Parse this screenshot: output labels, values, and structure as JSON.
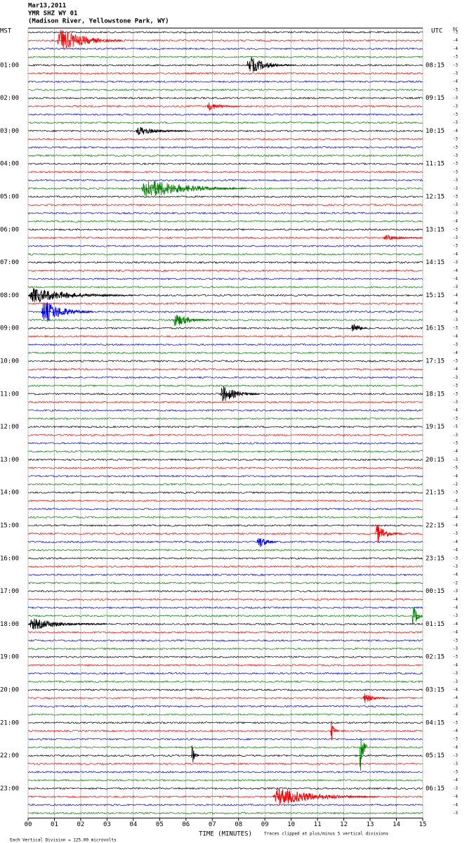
{
  "chart_data": {
    "type": "helicorder",
    "header": {
      "date": "Mar13,2011",
      "station": "YMR SHZ WY 01",
      "location": "(Madison River, Yellowstone Park, WY)"
    },
    "left_axis_title": "MST",
    "right_axis_title": "UTC",
    "dc_label": "DC",
    "mst_labels": [
      "01:00",
      "02:00",
      "03:00",
      "04:00",
      "05:00",
      "06:00",
      "07:00",
      "08:00",
      "09:00",
      "10:00",
      "11:00",
      "12:00",
      "13:00",
      "14:00",
      "15:00",
      "16:00",
      "17:00",
      "18:00",
      "19:00",
      "20:00",
      "21:00",
      "22:00",
      "23:00"
    ],
    "utc_labels": [
      "08:15",
      "09:15",
      "10:15",
      "11:15",
      "12:15",
      "13:15",
      "14:15",
      "15:15",
      "16:15",
      "17:15",
      "18:15",
      "19:15",
      "20:15",
      "21:15",
      "22:15",
      "23:15",
      "00:15",
      "01:15",
      "02:15",
      "03:15",
      "04:15",
      "05:15",
      "06:15"
    ],
    "trace_colors": [
      "#000000",
      "#ff0000",
      "#0000ff",
      "#008000"
    ],
    "dc_offsets": [
      -3,
      -4,
      -4,
      -3,
      -3,
      -3,
      -4,
      -3,
      -3,
      -3,
      -3,
      -3,
      -4,
      -3,
      -3,
      -3,
      -3,
      -3,
      -3,
      -3,
      -3,
      -3,
      -3,
      -4,
      -3,
      -3,
      -3,
      -4,
      -3,
      -4,
      -4,
      -3,
      -4,
      -4,
      -4,
      -3,
      -3,
      -4,
      -3,
      -4,
      -3,
      -4,
      -3,
      -3,
      -3,
      -3,
      -4,
      -3,
      -5,
      -3,
      -3,
      -4,
      -3,
      -5,
      -4,
      -2,
      -3,
      -4,
      -3,
      -4,
      -4,
      -3,
      -4,
      -4,
      -3,
      -3,
      -4,
      -2,
      -3,
      -4,
      -4,
      -3,
      -4,
      -4,
      -3,
      -3,
      -3,
      -4,
      -3,
      -3,
      -4,
      -4,
      -3,
      -4,
      -3,
      -4,
      -3,
      -4,
      -3,
      -3,
      -3,
      -4,
      -3,
      -4,
      -4,
      -3
    ],
    "xlim": [
      0,
      15
    ],
    "xticks": [
      {
        "value": 0,
        "label": "00"
      },
      {
        "value": 1,
        "label": "01"
      },
      {
        "value": 2,
        "label": "02"
      },
      {
        "value": 3,
        "label": "03"
      },
      {
        "value": 4,
        "label": "04"
      },
      {
        "value": 5,
        "label": "05"
      },
      {
        "value": 6,
        "label": "06"
      },
      {
        "value": 7,
        "label": "07"
      },
      {
        "value": 8,
        "label": "08"
      },
      {
        "value": 9,
        "label": "09"
      },
      10,
      11,
      12,
      13,
      14,
      15
    ],
    "x_axis_title": "TIME (MINUTES)",
    "events": [
      {
        "trace": 1,
        "minute": 1.1,
        "duration": 2.5,
        "amplitude": 8
      },
      {
        "trace": 4,
        "minute": 8.3,
        "duration": 1.8,
        "amplitude": 6
      },
      {
        "trace": 9,
        "minute": 6.8,
        "duration": 1.2,
        "amplitude": 3
      },
      {
        "trace": 12,
        "minute": 4.1,
        "duration": 2,
        "amplitude": 3
      },
      {
        "trace": 19,
        "minute": 4.3,
        "duration": 4,
        "amplitude": 7
      },
      {
        "trace": 25,
        "minute": 13.5,
        "duration": 1.5,
        "amplitude": 2
      },
      {
        "trace": 32,
        "minute": 0,
        "duration": 4,
        "amplitude": 5
      },
      {
        "trace": 34,
        "minute": 0.5,
        "duration": 2,
        "amplitude": 8
      },
      {
        "trace": 35,
        "minute": 5.5,
        "duration": 1.5,
        "amplitude": 5
      },
      {
        "trace": 36,
        "minute": 12.3,
        "duration": 0.6,
        "amplitude": 5
      },
      {
        "trace": 44,
        "minute": 7.3,
        "duration": 1.5,
        "amplitude": 6
      },
      {
        "trace": 61,
        "minute": 13.2,
        "duration": 1,
        "amplitude": 7
      },
      {
        "trace": 62,
        "minute": 8.7,
        "duration": 0.8,
        "amplitude": 5
      },
      {
        "trace": 71,
        "minute": 14.6,
        "duration": 0.4,
        "amplitude": 10
      },
      {
        "trace": 72,
        "minute": 0,
        "duration": 3,
        "amplitude": 4
      },
      {
        "trace": 81,
        "minute": 12.7,
        "duration": 1,
        "amplitude": 4
      },
      {
        "trace": 85,
        "minute": 11.5,
        "duration": 0.3,
        "amplitude": 8
      },
      {
        "trace": 87,
        "minute": 12.6,
        "duration": 0.3,
        "amplitude": 20
      },
      {
        "trace": 88,
        "minute": 6.2,
        "duration": 0.3,
        "amplitude": 8
      },
      {
        "trace": 93,
        "minute": 9.3,
        "duration": 4,
        "amplitude": 6
      }
    ],
    "footer": {
      "left": "Each Vertical Division = 125.00 microvolts",
      "right": "Traces clipped at plus/minus 5 vertical divisions"
    }
  }
}
